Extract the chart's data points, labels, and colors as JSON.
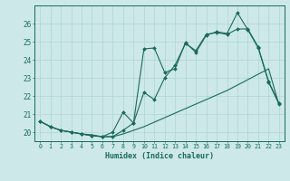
{
  "xlabel": "Humidex (Indice chaleur)",
  "bg_color": "#cce8e8",
  "grid_color": "#b0d4d4",
  "line_color": "#1a6b5a",
  "xlim": [
    -0.5,
    23.5
  ],
  "ylim": [
    19.5,
    27.0
  ],
  "yticks": [
    20,
    21,
    22,
    23,
    24,
    25,
    26
  ],
  "xticks": [
    0,
    1,
    2,
    3,
    4,
    5,
    6,
    7,
    8,
    9,
    10,
    11,
    12,
    13,
    14,
    15,
    16,
    17,
    18,
    19,
    20,
    21,
    22,
    23
  ],
  "series1_x": [
    0,
    1,
    2,
    3,
    4,
    5,
    6,
    7,
    8,
    9,
    10,
    11,
    12,
    13,
    14,
    15,
    16,
    17,
    18,
    19,
    20,
    21,
    22,
    23
  ],
  "series1_y": [
    20.6,
    20.3,
    20.1,
    20.0,
    19.9,
    19.85,
    19.75,
    19.75,
    19.9,
    20.1,
    20.3,
    20.55,
    20.8,
    21.05,
    21.3,
    21.55,
    21.8,
    22.05,
    22.3,
    22.6,
    22.9,
    23.2,
    23.5,
    21.5
  ],
  "series2_x": [
    0,
    1,
    2,
    3,
    4,
    5,
    6,
    7,
    8,
    9,
    10,
    11,
    12,
    13,
    14,
    15,
    16,
    17,
    18,
    19,
    20,
    21,
    22,
    23
  ],
  "series2_y": [
    20.6,
    20.3,
    20.1,
    20.0,
    19.9,
    19.8,
    19.75,
    20.0,
    21.1,
    20.5,
    22.2,
    21.8,
    23.0,
    23.7,
    24.9,
    24.5,
    25.4,
    25.5,
    25.4,
    25.7,
    25.7,
    24.7,
    22.8,
    21.6
  ],
  "series3_x": [
    0,
    1,
    2,
    3,
    4,
    5,
    6,
    7,
    8,
    9,
    10,
    11,
    12,
    13,
    14,
    15,
    16,
    17,
    18,
    19,
    20,
    21,
    22,
    23
  ],
  "series3_y": [
    20.6,
    20.3,
    20.1,
    20.0,
    19.9,
    19.8,
    19.75,
    19.75,
    20.1,
    20.5,
    24.6,
    24.65,
    23.3,
    23.5,
    24.95,
    24.4,
    25.35,
    25.55,
    25.45,
    26.6,
    25.65,
    24.65,
    22.75,
    21.55
  ]
}
